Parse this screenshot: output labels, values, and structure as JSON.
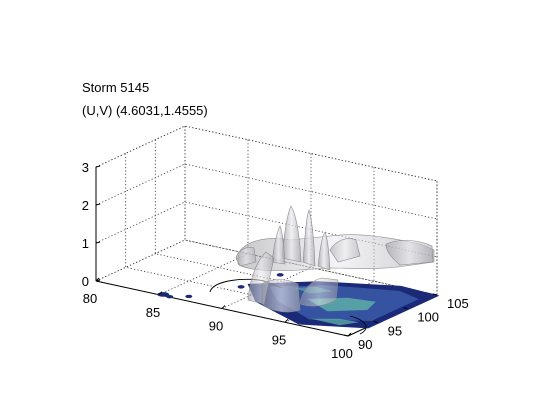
{
  "chart_data": {
    "type": "3d-isosurface",
    "title_line1": "Storm 5145",
    "title_line2": "(U,V) (4.6031,1.4555)",
    "z_ticks": [
      "0",
      "1",
      "2",
      "3"
    ],
    "x_ticks": [
      "80",
      "85",
      "90",
      "95",
      "100"
    ],
    "y_ticks": [
      "90",
      "95",
      "100",
      "105"
    ],
    "zlim": [
      0,
      3
    ],
    "xlim": [
      80,
      100
    ],
    "ylim": [
      90,
      105
    ],
    "grid": true,
    "colors": {
      "floor_dark": "#1a2a78",
      "floor_mid": "#3c5aa8",
      "floor_teal": "#5fb3a8",
      "surface": "#c8c8cc",
      "surface_edge": "#8a8a90"
    }
  }
}
